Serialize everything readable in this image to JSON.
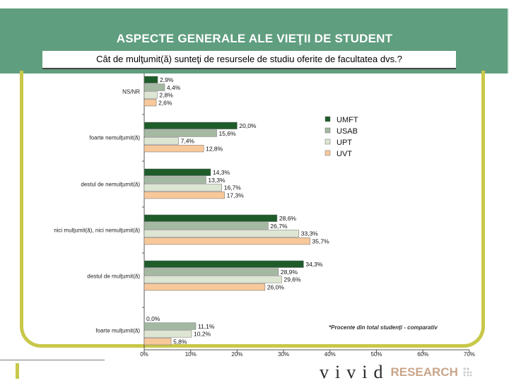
{
  "header": {
    "title": "ASPECTE GENERALE ALE VIEŢII DE STUDENT",
    "subtitle": "Cât de mulţumit(ă) sunteţi de resursele de studiu oferite de facultatea dvs.?"
  },
  "footnote": "*Procente din total studenţi - comparativ",
  "brand": {
    "word": "vivid",
    "research": "RESEARCH"
  },
  "chart_data": {
    "type": "bar",
    "orientation": "horizontal",
    "categories": [
      "NS/NR",
      "foarte nemulţumit(ă)",
      "destul de nemulţumit(ă)",
      "nici mulţumit(ă), nici nemulţumit(ă)",
      "destul de mulţumit(ă)",
      "foarte mulţumit(ă)"
    ],
    "series": [
      {
        "name": "UMFT",
        "color": "#1e5c2a",
        "values": [
          2.9,
          20.0,
          14.3,
          28.6,
          34.3,
          0.0
        ],
        "labels": [
          "2,9%",
          "20,0%",
          "14,3%",
          "28,6%",
          "34,3%",
          "0,0%"
        ]
      },
      {
        "name": "USAB",
        "color": "#a3b9a1",
        "values": [
          4.4,
          15.6,
          13.3,
          26.7,
          28.9,
          11.1
        ],
        "labels": [
          "4,4%",
          "15,6%",
          "13,3%",
          "26,7%",
          "28,9%",
          "11,1%"
        ]
      },
      {
        "name": "UPT",
        "color": "#dde6d2",
        "values": [
          2.8,
          7.4,
          16.7,
          33.3,
          29.6,
          10.2
        ],
        "labels": [
          "2,8%",
          "7,4%",
          "16,7%",
          "33,3%",
          "29,6%",
          "10,2%"
        ]
      },
      {
        "name": "UVT",
        "color": "#f7c89a",
        "values": [
          2.6,
          12.8,
          17.3,
          35.7,
          26.0,
          5.8
        ],
        "labels": [
          "2,6%",
          "12,8%",
          "17,3%",
          "35,7%",
          "26,0%",
          "5,8%"
        ]
      }
    ],
    "xlim": [
      0,
      70
    ],
    "xticks": [
      0,
      10,
      20,
      30,
      40,
      50,
      60,
      70
    ],
    "xtick_labels": [
      "0%",
      "10%",
      "20%",
      "30%",
      "40%",
      "50%",
      "60%",
      "70%"
    ],
    "legend_position": "right",
    "grid": false
  }
}
